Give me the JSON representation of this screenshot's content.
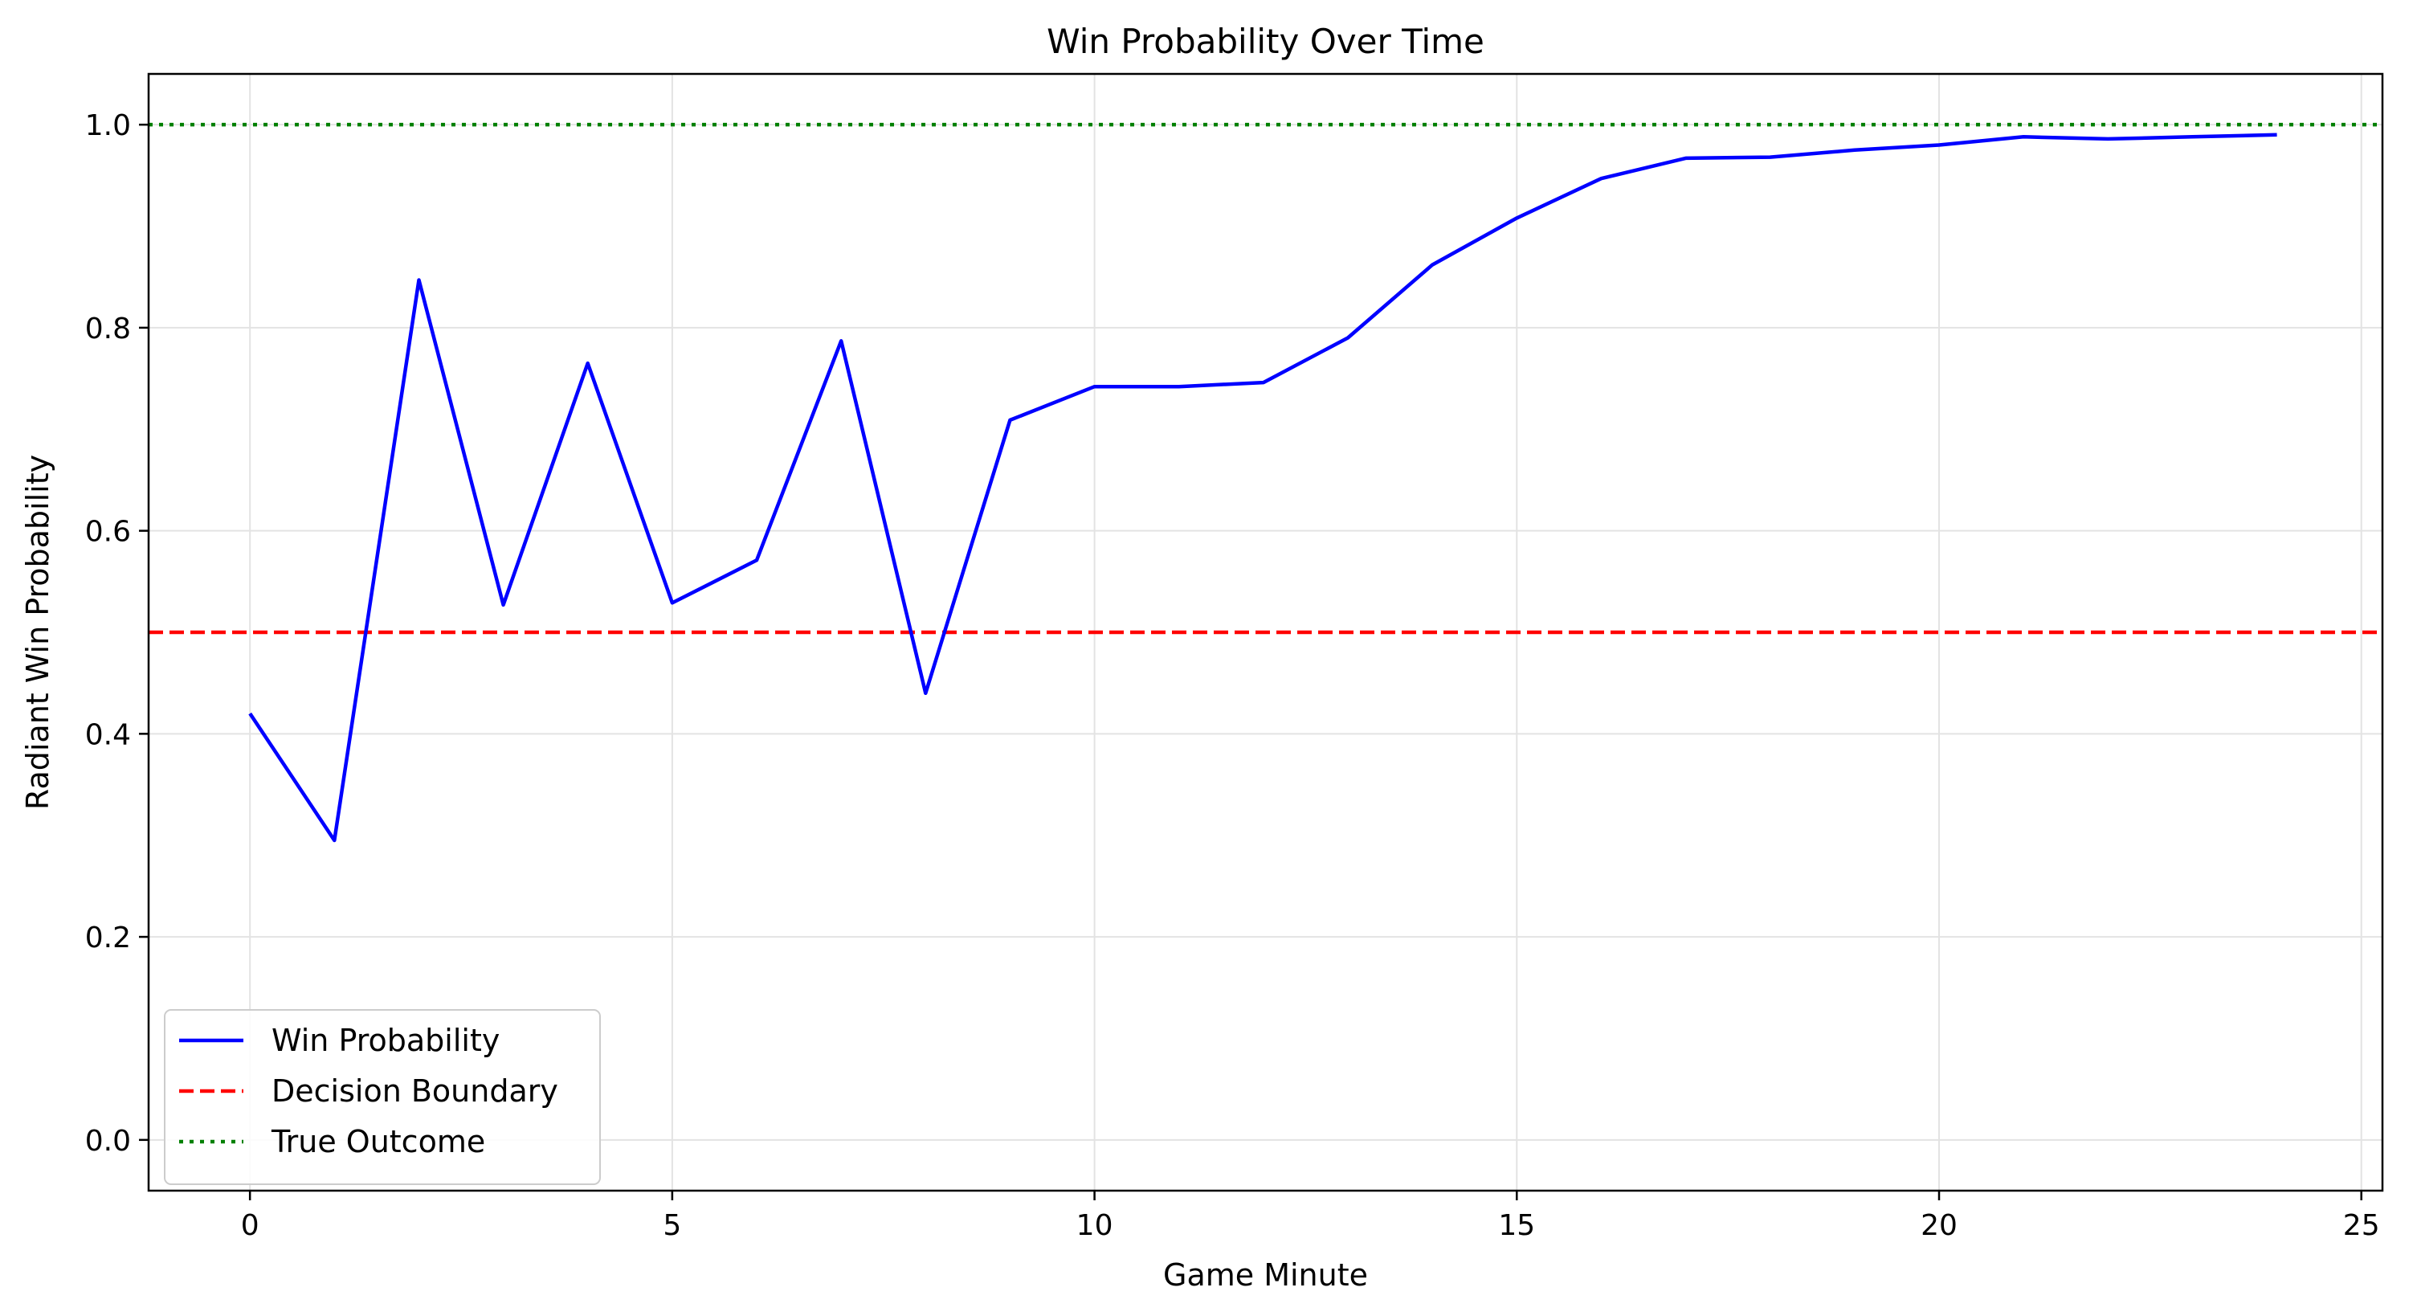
{
  "chart_data": {
    "type": "line",
    "title": "Win Probability Over Time",
    "xlabel": "Game Minute",
    "ylabel": "Radiant Win Probability",
    "xlim": [
      -1.2,
      25.25
    ],
    "ylim": [
      -0.05,
      1.05
    ],
    "xticks": [
      0,
      5,
      10,
      15,
      20,
      25
    ],
    "xtick_labels": [
      "0",
      "5",
      "10",
      "15",
      "20",
      "25"
    ],
    "yticks": [
      0.0,
      0.2,
      0.4,
      0.6,
      0.8,
      1.0
    ],
    "ytick_labels": [
      "0.0",
      "0.2",
      "0.4",
      "0.6",
      "0.8",
      "1.0"
    ],
    "grid": true,
    "legend_position": "lower-left",
    "series": [
      {
        "name": "Win Probability",
        "color": "#0000ff",
        "style": "solid",
        "x": [
          0,
          1,
          2,
          3,
          4,
          5,
          6,
          7,
          8,
          9,
          10,
          11,
          12,
          13,
          14,
          15,
          16,
          17,
          18,
          19,
          20,
          21,
          22,
          23,
          24
        ],
        "y": [
          0.42,
          0.295,
          0.847,
          0.527,
          0.765,
          0.529,
          0.571,
          0.787,
          0.44,
          0.709,
          0.742,
          0.742,
          0.746,
          0.79,
          0.862,
          0.908,
          0.947,
          0.967,
          0.968,
          0.975,
          0.98,
          0.988,
          0.986,
          0.988,
          0.99
        ]
      }
    ],
    "reference_lines": [
      {
        "name": "Decision Boundary",
        "y": 0.5,
        "color": "#ff0000",
        "style": "dashed"
      },
      {
        "name": "True Outcome",
        "y": 1.0,
        "color": "#008000",
        "style": "dotted"
      }
    ]
  }
}
